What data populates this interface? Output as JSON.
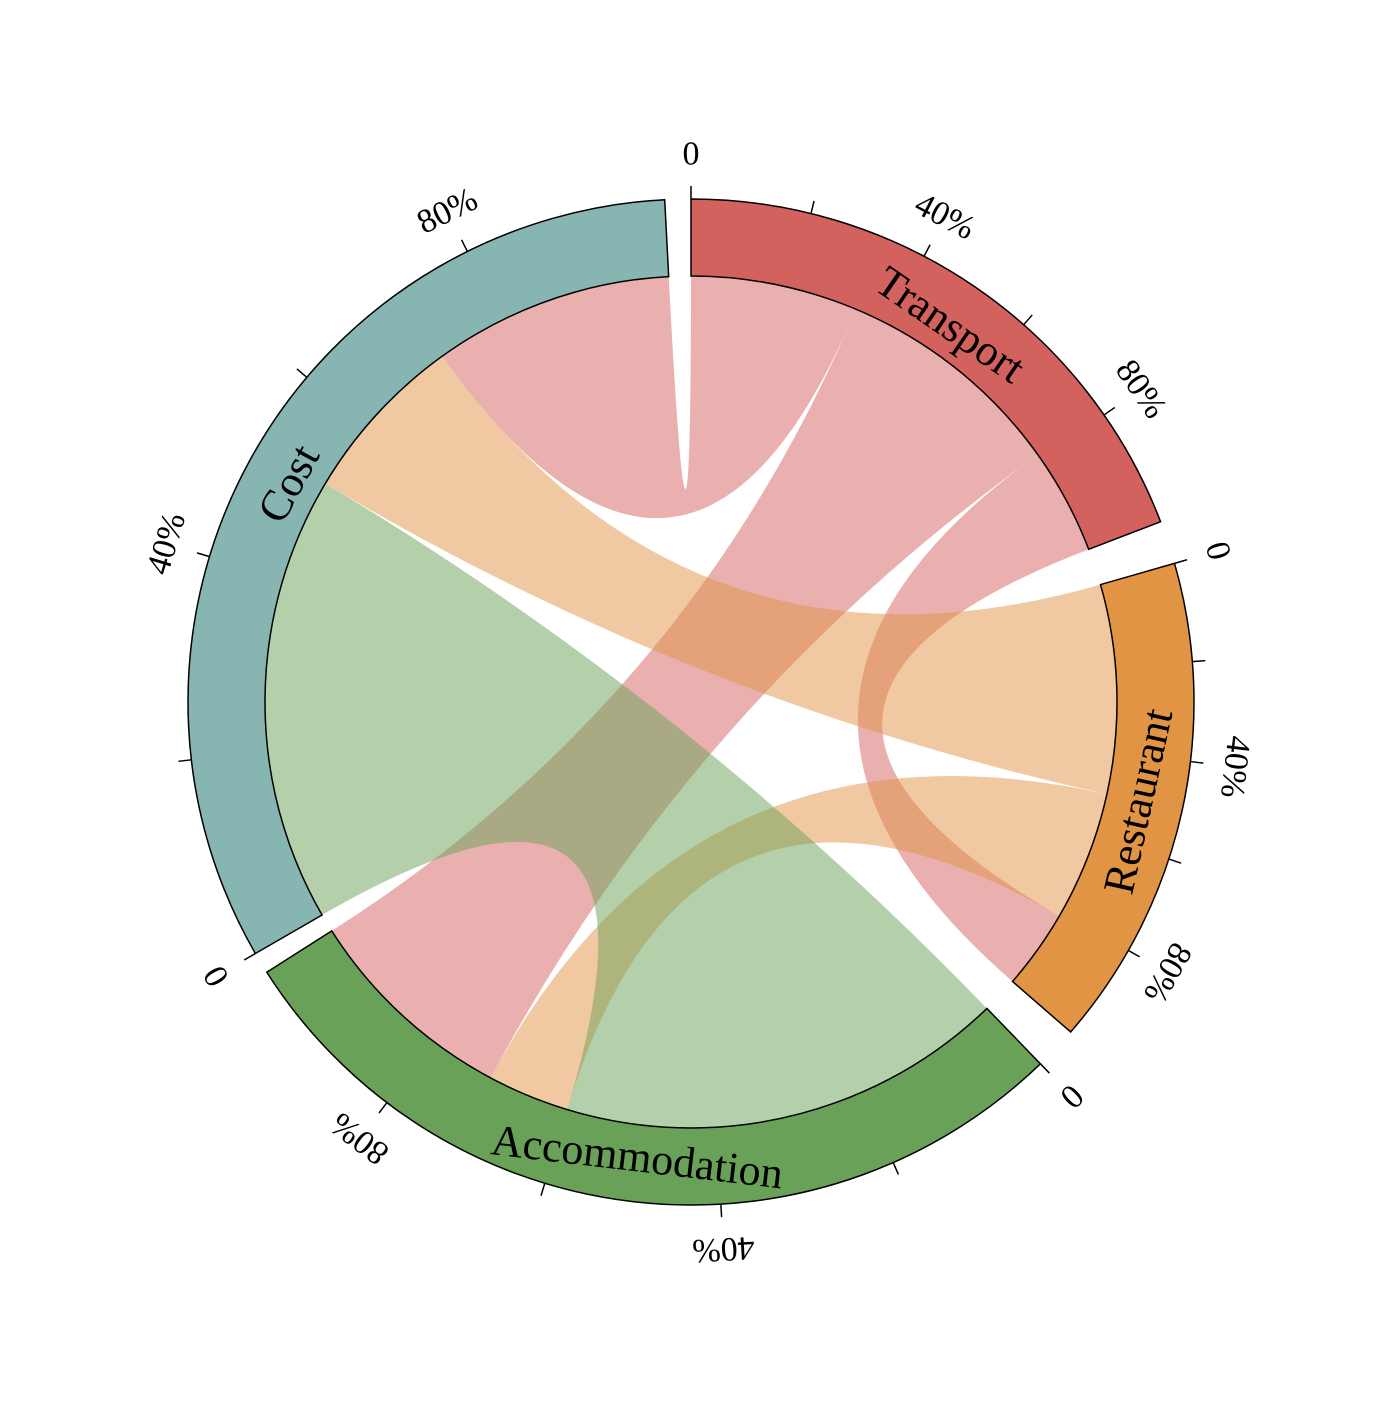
{
  "chart_data": {
    "type": "chord",
    "title": "",
    "tick_suffix": "%",
    "tick_labels": [
      "0",
      "40%",
      "80%"
    ],
    "sectors": [
      {
        "name": "Transport",
        "color": "#d3625f",
        "ticks": [
          0,
          20,
          40,
          60,
          80
        ]
      },
      {
        "name": "Restaurant",
        "color": "#e29445",
        "ticks": [
          0,
          20,
          40,
          60,
          80
        ]
      },
      {
        "name": "Accommodation",
        "color": "#6aa158",
        "ticks": [
          0,
          20,
          40,
          60,
          80
        ]
      },
      {
        "name": "Cost",
        "color": "#86b5b2",
        "ticks": [
          0,
          20,
          40,
          60,
          80
        ]
      }
    ],
    "ribbons": [
      {
        "source": "Transport",
        "source_range": [
          0,
          33
        ],
        "target": "Cost",
        "target_range": [
          72,
          100
        ],
        "color": "#d3625f"
      },
      {
        "source": "Transport",
        "source_range": [
          33,
          79
        ],
        "target": "Accommodation",
        "target_range": [
          71,
          100
        ],
        "color": "#d3625f"
      },
      {
        "source": "Transport",
        "source_range": [
          79,
          100
        ],
        "target": "Restaurant",
        "target_range": [
          81,
          100
        ],
        "color": "#d3625f"
      },
      {
        "source": "Restaurant",
        "source_range": [
          0,
          50
        ],
        "target": "Cost",
        "target_range": [
          52,
          72
        ],
        "color": "#e29445"
      },
      {
        "source": "Restaurant",
        "source_range": [
          50,
          81
        ],
        "target": "Accommodation",
        "target_range": [
          60,
          71
        ],
        "color": "#e29445"
      },
      {
        "source": "Accommodation",
        "source_range": [
          0,
          60
        ],
        "target": "Cost",
        "target_range": [
          0,
          52
        ],
        "color": "#6aa158"
      }
    ]
  }
}
